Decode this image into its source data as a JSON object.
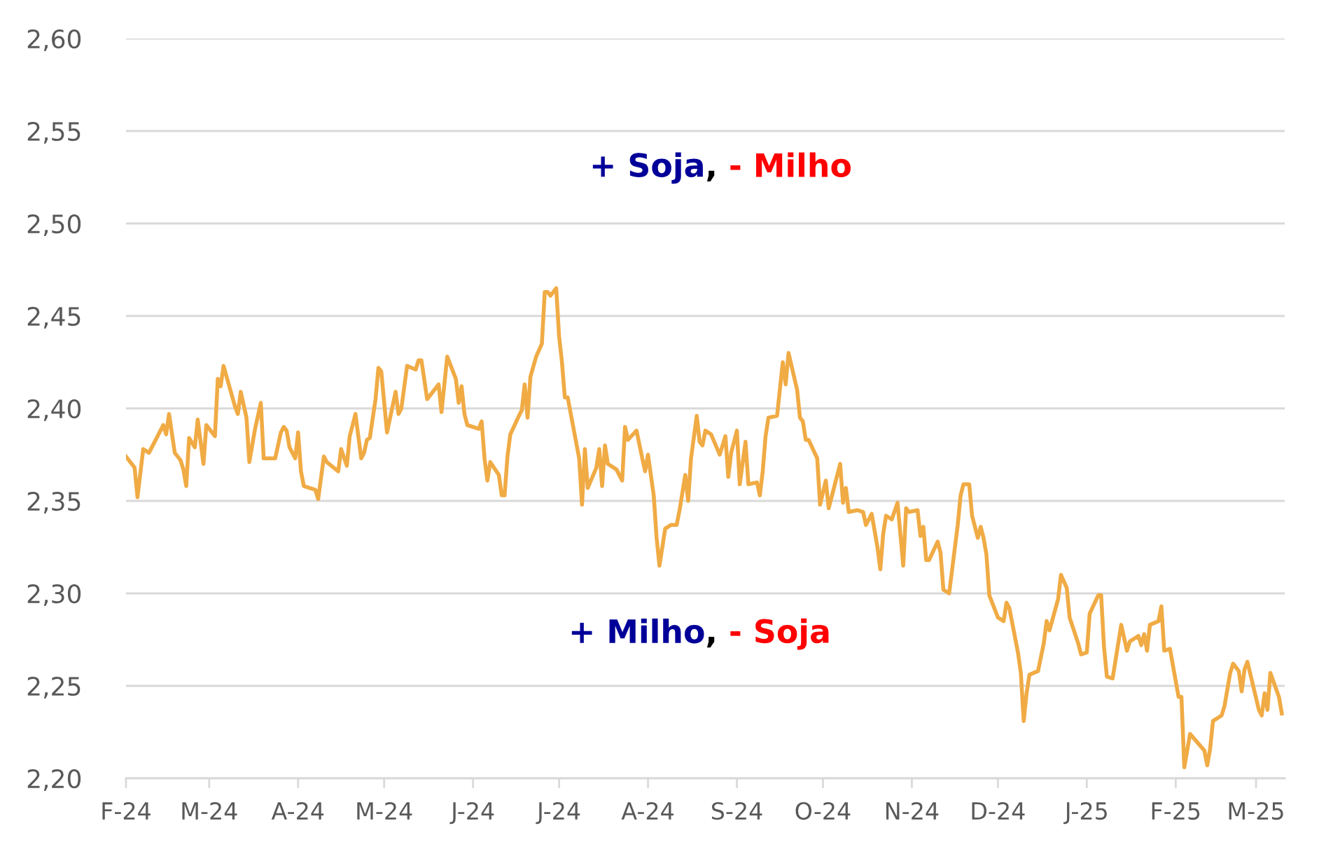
{
  "chart_data": {
    "type": "line",
    "annotations": [
      "+ Soja, - Milho",
      "+ Milho, - Soja"
    ],
    "x": [
      "2024-02-01",
      "2024-02-04",
      "2024-02-05",
      "2024-02-07",
      "2024-02-09",
      "2024-02-14",
      "2024-02-15",
      "2024-02-16",
      "2024-02-18",
      "2024-02-20",
      "2024-02-21",
      "2024-02-22",
      "2024-02-23",
      "2024-02-25",
      "2024-02-26",
      "2024-02-28",
      "2024-02-29",
      "2024-03-03",
      "2024-03-04",
      "2024-03-05",
      "2024-03-06",
      "2024-03-10",
      "2024-03-11",
      "2024-03-12",
      "2024-03-14",
      "2024-03-15",
      "2024-03-17",
      "2024-03-19",
      "2024-03-20",
      "2024-03-24",
      "2024-03-26",
      "2024-03-27",
      "2024-03-28",
      "2024-03-29",
      "2024-03-31",
      "2024-04-01",
      "2024-04-02",
      "2024-04-03",
      "2024-04-07",
      "2024-04-08",
      "2024-04-10",
      "2024-04-11",
      "2024-04-15",
      "2024-04-16",
      "2024-04-18",
      "2024-04-19",
      "2024-04-21",
      "2024-04-23",
      "2024-04-24",
      "2024-04-25",
      "2024-04-26",
      "2024-04-28",
      "2024-04-29",
      "2024-04-30",
      "2024-05-02",
      "2024-05-05",
      "2024-05-06",
      "2024-05-07",
      "2024-05-09",
      "2024-05-12",
      "2024-05-13",
      "2024-05-14",
      "2024-05-16",
      "2024-05-20",
      "2024-05-21",
      "2024-05-23",
      "2024-05-26",
      "2024-05-27",
      "2024-05-28",
      "2024-05-29",
      "2024-05-30",
      "2024-06-03",
      "2024-06-04",
      "2024-06-05",
      "2024-06-06",
      "2024-06-07",
      "2024-06-10",
      "2024-06-11",
      "2024-06-12",
      "2024-06-13",
      "2024-06-14",
      "2024-06-17",
      "2024-06-18",
      "2024-06-19",
      "2024-06-20",
      "2024-06-21",
      "2024-06-23",
      "2024-06-25",
      "2024-06-26",
      "2024-06-27",
      "2024-06-28",
      "2024-06-30",
      "2024-07-01",
      "2024-07-02",
      "2024-07-03",
      "2024-07-04",
      "2024-07-08",
      "2024-07-09",
      "2024-07-10",
      "2024-07-11",
      "2024-07-14",
      "2024-07-15",
      "2024-07-16",
      "2024-07-17",
      "2024-07-18",
      "2024-07-21",
      "2024-07-23",
      "2024-07-24",
      "2024-07-25",
      "2024-07-28",
      "2024-07-30",
      "2024-07-31",
      "2024-08-01",
      "2024-08-03",
      "2024-08-04",
      "2024-08-05",
      "2024-08-07",
      "2024-08-09",
      "2024-08-11",
      "2024-08-12",
      "2024-08-14",
      "2024-08-15",
      "2024-08-16",
      "2024-08-18",
      "2024-08-19",
      "2024-08-20",
      "2024-08-21",
      "2024-08-23",
      "2024-08-26",
      "2024-08-28",
      "2024-08-29",
      "2024-08-30",
      "2024-09-01",
      "2024-09-02",
      "2024-09-04",
      "2024-09-05",
      "2024-09-08",
      "2024-09-09",
      "2024-09-10",
      "2024-09-11",
      "2024-09-12",
      "2024-09-15",
      "2024-09-17",
      "2024-09-18",
      "2024-09-19",
      "2024-09-22",
      "2024-09-23",
      "2024-09-24",
      "2024-09-25",
      "2024-09-26",
      "2024-09-29",
      "2024-09-30",
      "2024-10-02",
      "2024-10-03",
      "2024-10-07",
      "2024-10-08",
      "2024-10-09",
      "2024-10-10",
      "2024-10-13",
      "2024-10-15",
      "2024-10-16",
      "2024-10-18",
      "2024-10-20",
      "2024-10-21",
      "2024-10-22",
      "2024-10-23",
      "2024-10-25",
      "2024-10-27",
      "2024-10-29",
      "2024-10-30",
      "2024-10-31",
      "2024-11-03",
      "2024-11-04",
      "2024-11-05",
      "2024-11-06",
      "2024-11-07",
      "2024-11-10",
      "2024-11-11",
      "2024-11-12",
      "2024-11-14",
      "2024-11-17",
      "2024-11-18",
      "2024-11-19",
      "2024-11-21",
      "2024-11-22",
      "2024-11-24",
      "2024-11-25",
      "2024-11-26",
      "2024-11-27",
      "2024-11-28",
      "2024-12-01",
      "2024-12-03",
      "2024-12-04",
      "2024-12-05",
      "2024-12-08",
      "2024-12-09",
      "2024-12-10",
      "2024-12-11",
      "2024-12-12",
      "2024-12-15",
      "2024-12-17",
      "2024-12-18",
      "2024-12-19",
      "2024-12-22",
      "2024-12-23",
      "2024-12-25",
      "2024-12-26",
      "2024-12-29",
      "2024-12-30",
      "2025-01-01",
      "2025-01-02",
      "2025-01-05",
      "2025-01-06",
      "2025-01-07",
      "2025-01-08",
      "2025-01-10",
      "2025-01-13",
      "2025-01-15",
      "2025-01-16",
      "2025-01-19",
      "2025-01-20",
      "2025-01-21",
      "2025-01-22",
      "2025-01-23",
      "2025-01-26",
      "2025-01-27",
      "2025-01-28",
      "2025-01-30",
      "2025-02-02",
      "2025-02-03",
      "2025-02-04",
      "2025-02-06",
      "2025-02-11",
      "2025-02-12",
      "2025-02-13",
      "2025-02-14",
      "2025-02-17",
      "2025-02-18",
      "2025-02-20",
      "2025-02-21",
      "2025-02-23",
      "2025-02-24",
      "2025-02-25",
      "2025-02-26",
      "2025-03-02",
      "2025-03-03",
      "2025-03-04",
      "2025-03-05",
      "2025-03-06",
      "2025-03-09",
      "2025-03-10"
    ],
    "series": [
      {
        "color": "#f0ab45",
        "values": [
          2.374,
          2.368,
          2.352,
          2.378,
          2.376,
          2.391,
          2.386,
          2.397,
          2.376,
          2.372,
          2.367,
          2.358,
          2.384,
          2.379,
          2.394,
          2.37,
          2.391,
          2.385,
          2.416,
          2.412,
          2.423,
          2.401,
          2.397,
          2.409,
          2.395,
          2.371,
          2.389,
          2.403,
          2.373,
          2.373,
          2.387,
          2.39,
          2.388,
          2.379,
          2.373,
          2.387,
          2.366,
          2.358,
          2.356,
          2.351,
          2.374,
          2.371,
          2.366,
          2.378,
          2.369,
          2.385,
          2.397,
          2.373,
          2.376,
          2.383,
          2.384,
          2.405,
          2.422,
          2.42,
          2.387,
          2.409,
          2.397,
          2.4,
          2.423,
          2.421,
          2.426,
          2.426,
          2.405,
          2.413,
          2.398,
          2.428,
          2.416,
          2.403,
          2.412,
          2.397,
          2.391,
          2.389,
          2.393,
          2.373,
          2.361,
          2.371,
          2.364,
          2.353,
          2.353,
          2.374,
          2.386,
          2.396,
          2.399,
          2.413,
          2.395,
          2.417,
          2.428,
          2.435,
          2.463,
          2.463,
          2.461,
          2.465,
          2.439,
          2.425,
          2.406,
          2.406,
          2.373,
          2.348,
          2.378,
          2.357,
          2.368,
          2.378,
          2.358,
          2.38,
          2.37,
          2.367,
          2.361,
          2.39,
          2.383,
          2.388,
          2.373,
          2.366,
          2.375,
          2.353,
          2.33,
          2.315,
          2.335,
          2.337,
          2.337,
          2.345,
          2.364,
          2.35,
          2.373,
          2.396,
          2.382,
          2.38,
          2.388,
          2.386,
          2.375,
          2.385,
          2.363,
          2.376,
          2.388,
          2.359,
          2.382,
          2.359,
          2.36,
          2.353,
          2.366,
          2.385,
          2.395,
          2.396,
          2.425,
          2.413,
          2.43,
          2.41,
          2.395,
          2.393,
          2.383,
          2.383,
          2.373,
          2.348,
          2.361,
          2.346,
          2.37,
          2.349,
          2.357,
          2.344,
          2.345,
          2.344,
          2.337,
          2.343,
          2.325,
          2.313,
          2.332,
          2.342,
          2.34,
          2.349,
          2.315,
          2.346,
          2.344,
          2.345,
          2.331,
          2.336,
          2.318,
          2.318,
          2.328,
          2.322,
          2.302,
          2.3,
          2.337,
          2.353,
          2.359,
          2.359,
          2.342,
          2.33,
          2.336,
          2.33,
          2.321,
          2.299,
          2.287,
          2.285,
          2.295,
          2.292,
          2.268,
          2.257,
          2.231,
          2.246,
          2.256,
          2.258,
          2.273,
          2.285,
          2.28,
          2.297,
          2.31,
          2.303,
          2.287,
          2.273,
          2.267,
          2.268,
          2.289,
          2.299,
          2.299,
          2.271,
          2.255,
          2.254,
          2.283,
          2.269,
          2.274,
          2.277,
          2.272,
          2.278,
          2.269,
          2.283,
          2.285,
          2.293,
          2.269,
          2.27,
          2.244,
          2.244,
          2.206,
          2.224,
          2.215,
          2.207,
          2.216,
          2.231,
          2.234,
          2.239,
          2.257,
          2.262,
          2.258,
          2.247,
          2.259,
          2.263,
          2.237,
          2.234,
          2.246,
          2.237,
          2.257,
          2.244,
          2.235
        ]
      }
    ],
    "xlim": [
      "2024-02-01",
      "2025-03-11"
    ],
    "xticks": [
      {
        "value": "2024-02-01",
        "label": "F-24"
      },
      {
        "value": "2024-03-01",
        "label": "M-24"
      },
      {
        "value": "2024-04-01",
        "label": "A-24"
      },
      {
        "value": "2024-05-01",
        "label": "M-24"
      },
      {
        "value": "2024-06-01",
        "label": "J-24"
      },
      {
        "value": "2024-07-01",
        "label": "J-24"
      },
      {
        "value": "2024-08-01",
        "label": "A-24"
      },
      {
        "value": "2024-09-01",
        "label": "S-24"
      },
      {
        "value": "2024-10-01",
        "label": "O-24"
      },
      {
        "value": "2024-11-01",
        "label": "N-24"
      },
      {
        "value": "2024-12-01",
        "label": "D-24"
      },
      {
        "value": "2025-01-01",
        "label": "J-25"
      },
      {
        "value": "2025-02-01",
        "label": "F-25"
      },
      {
        "value": "2025-03-01",
        "label": "M-25"
      }
    ],
    "ylim": [
      2.2,
      2.6
    ],
    "yticks": [
      {
        "value": 2.2,
        "label": "2,20"
      },
      {
        "value": 2.25,
        "label": "2,25"
      },
      {
        "value": 2.3,
        "label": "2,30"
      },
      {
        "value": 2.35,
        "label": "2,35"
      },
      {
        "value": 2.4,
        "label": "2,40"
      },
      {
        "value": 2.45,
        "label": "2,45"
      },
      {
        "value": 2.5,
        "label": "2,50"
      },
      {
        "value": 2.55,
        "label": "2,55"
      },
      {
        "value": 2.6,
        "label": "2,60"
      }
    ],
    "grid": "y",
    "line_style": "solid",
    "marker": "none"
  }
}
